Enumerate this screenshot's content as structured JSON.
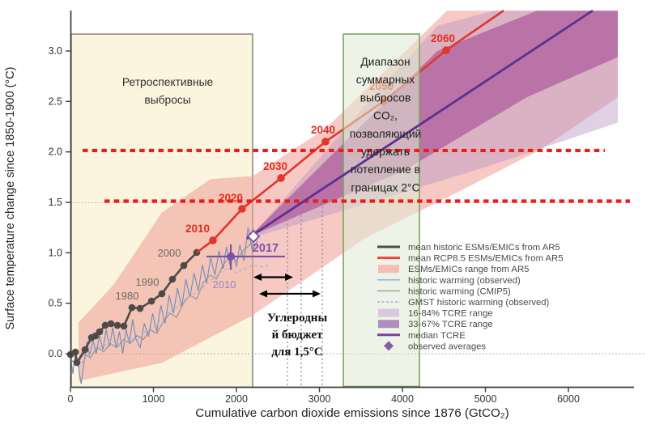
{
  "chart_data": {
    "type": "line",
    "title": "",
    "xlabel": "Cumulative carbon dioxide emissions since 1876 (GtCO₂)",
    "ylabel": "Surface temperature change since 1850-1900 (°C)",
    "xlim": [
      0,
      6790
    ],
    "ylim": [
      -0.33,
      3.4
    ],
    "x_ticks": [
      0,
      1000,
      2000,
      3000,
      4000,
      5000,
      6000
    ],
    "y_ticks": [
      "0.0",
      "0.5",
      "1.0",
      "1.5",
      "2.0",
      "2.5",
      "3.0"
    ],
    "grid": "horizontal-dotted",
    "legend_position": "lower-right",
    "colors": {
      "red_line": "#E2352B",
      "red_dotted": "#EE1C16",
      "historic_gray": "#4E4A48",
      "observed_blue": "#6C8EBF",
      "cmip5_gray": "#8F8F8F",
      "gmst_blue": "#9FB4D8",
      "pink_band": "#EF9D93",
      "tcre_16_84": "#B897C6",
      "tcre_33_67": "#A03F8F",
      "median_purple": "#5C2F92",
      "purple_marker": "#7B52A3",
      "beige_fill": "#FBF4DF",
      "beige_border": "#6B665A",
      "green_fill": "#DFEBD3",
      "green_border": "#7CA45C",
      "axis": "#3C3C3C"
    },
    "bands": [
      {
        "name": "ESMs/EMICs range from AR5",
        "color": "#EF9D93",
        "opacity": 0.55,
        "points": [
          [
            98,
            0.31
          ],
          [
            517,
            0.68
          ],
          [
            1102,
            1.4
          ],
          [
            1688,
            1.73
          ],
          [
            2195,
            1.76
          ],
          [
            3073,
            2.23
          ],
          [
            3736,
            2.76
          ],
          [
            4537,
            3.4
          ],
          [
            6595,
            3.4
          ],
          [
            6595,
            2.54
          ],
          [
            5658,
            2.02
          ],
          [
            4712,
            1.62
          ],
          [
            3541,
            1.14
          ],
          [
            2195,
            0.38
          ],
          [
            1102,
            -0.09
          ],
          [
            98,
            -0.27
          ]
        ]
      },
      {
        "name": "16-84% TCRE range",
        "color": "#B897C6",
        "opacity": 0.45,
        "points": [
          [
            2156,
            1.14
          ],
          [
            3541,
            2.45
          ],
          [
            4420,
            3.25
          ],
          [
            5102,
            3.4
          ],
          [
            6595,
            3.4
          ],
          [
            6595,
            2.29
          ],
          [
            5005,
            1.85
          ],
          [
            3541,
            1.48
          ]
        ]
      },
      {
        "name": "33-67% TCRE range",
        "color": "#A03F8F",
        "opacity": 0.55,
        "points": [
          [
            2156,
            1.16
          ],
          [
            3541,
            2.29
          ],
          [
            4420,
            3.0
          ],
          [
            5620,
            3.4
          ],
          [
            6595,
            3.4
          ],
          [
            6595,
            2.94
          ],
          [
            5493,
            2.54
          ],
          [
            4029,
            1.82
          ]
        ]
      }
    ],
    "series": [
      {
        "name": "historic warming (observed)",
        "style": "thin",
        "color": "#6C8EBF",
        "width": 1.1,
        "points": [
          [
            0,
            -0.02
          ],
          [
            30,
            -0.2
          ],
          [
            60,
            0.04
          ],
          [
            90,
            -0.1
          ],
          [
            130,
            -0.3
          ],
          [
            170,
            -0.05
          ],
          [
            200,
            0.12
          ],
          [
            230,
            -0.02
          ],
          [
            270,
            0.14
          ],
          [
            310,
            0.0
          ],
          [
            350,
            0.18
          ],
          [
            390,
            0.04
          ],
          [
            430,
            0.24
          ],
          [
            470,
            0.07
          ],
          [
            510,
            0.26
          ],
          [
            550,
            0.06
          ],
          [
            590,
            0.22
          ],
          [
            630,
            0.0
          ],
          [
            670,
            0.24
          ],
          [
            710,
            0.11
          ],
          [
            750,
            0.34
          ],
          [
            790,
            0.14
          ],
          [
            840,
            0.06
          ],
          [
            890,
            0.3
          ],
          [
            940,
            0.17
          ],
          [
            990,
            0.4
          ],
          [
            1040,
            0.22
          ],
          [
            1090,
            0.48
          ],
          [
            1140,
            0.3
          ],
          [
            1190,
            0.58
          ],
          [
            1240,
            0.4
          ],
          [
            1290,
            0.65
          ],
          [
            1340,
            0.46
          ],
          [
            1390,
            0.74
          ],
          [
            1440,
            0.56
          ],
          [
            1490,
            0.8
          ],
          [
            1540,
            0.62
          ],
          [
            1590,
            0.88
          ],
          [
            1640,
            0.7
          ],
          [
            1690,
            0.95
          ],
          [
            1740,
            0.78
          ],
          [
            1790,
            1.02
          ],
          [
            1840,
            0.84
          ],
          [
            1880,
            1.06
          ],
          [
            1920,
            0.88
          ],
          [
            1960,
            1.0
          ],
          [
            2000,
            0.86
          ],
          [
            2040,
            1.08
          ],
          [
            2090,
            0.92
          ],
          [
            2140,
            1.25
          ],
          [
            2190,
            1.02
          ],
          [
            2254,
            1.12
          ]
        ]
      },
      {
        "name": "historic warming (CMIP5)",
        "style": "thin",
        "color": "#8F8F8F",
        "width": 1.1,
        "points": [
          [
            0,
            -0.06
          ],
          [
            80,
            -0.1
          ],
          [
            160,
            0.0
          ],
          [
            240,
            -0.04
          ],
          [
            320,
            0.06
          ],
          [
            400,
            0.02
          ],
          [
            480,
            0.1
          ],
          [
            560,
            0.06
          ],
          [
            640,
            0.14
          ],
          [
            720,
            0.1
          ],
          [
            800,
            0.18
          ],
          [
            880,
            0.14
          ],
          [
            960,
            0.24
          ],
          [
            1040,
            0.2
          ],
          [
            1120,
            0.32
          ],
          [
            1200,
            0.4
          ],
          [
            1280,
            0.36
          ],
          [
            1360,
            0.5
          ],
          [
            1440,
            0.58
          ],
          [
            1520,
            0.54
          ],
          [
            1600,
            0.7
          ],
          [
            1680,
            0.78
          ],
          [
            1760,
            0.74
          ],
          [
            1840,
            0.88
          ],
          [
            1920,
            0.96
          ],
          [
            2000,
            0.92
          ],
          [
            2080,
            1.02
          ],
          [
            2160,
            1.08
          ],
          [
            2254,
            1.14
          ]
        ]
      },
      {
        "name": "GMST historic warming (observed)",
        "style": "dashed",
        "color": "#9FB4D8",
        "width": 1.1,
        "points": [
          [
            0,
            -0.06
          ],
          [
            100,
            -0.14
          ],
          [
            200,
            -0.02
          ],
          [
            300,
            0.04
          ],
          [
            400,
            0.08
          ],
          [
            500,
            0.13
          ],
          [
            600,
            0.09
          ],
          [
            700,
            0.16
          ],
          [
            800,
            0.12
          ],
          [
            900,
            0.22
          ],
          [
            1000,
            0.27
          ],
          [
            1100,
            0.34
          ],
          [
            1200,
            0.42
          ],
          [
            1300,
            0.47
          ],
          [
            1400,
            0.55
          ],
          [
            1500,
            0.6
          ],
          [
            1600,
            0.66
          ],
          [
            1700,
            0.73
          ],
          [
            1800,
            0.8
          ],
          [
            1900,
            0.85
          ],
          [
            2000,
            0.8
          ],
          [
            2100,
            0.84
          ],
          [
            2200,
            0.88
          ],
          [
            2300,
            0.86
          ],
          [
            2400,
            0.88
          ]
        ]
      },
      {
        "name": "mean historic ESMs/EMICs from AR5",
        "style": "dotted-line",
        "color": "#4E4A48",
        "width": 2.6,
        "dot_r": 4.3,
        "points": [
          [
            0,
            -0.008
          ],
          [
            59,
            0.016
          ],
          [
            78,
            -0.088
          ],
          [
            176,
            0.04
          ],
          [
            254,
            0.16
          ],
          [
            302,
            0.176
          ],
          [
            351,
            0.217
          ],
          [
            420,
            0.281
          ],
          [
            488,
            0.297
          ],
          [
            566,
            0.281
          ],
          [
            644,
            0.273
          ],
          [
            741,
            0.457
          ],
          [
            839,
            0.449
          ],
          [
            976,
            0.521
          ],
          [
            1102,
            0.594
          ],
          [
            1229,
            0.738
          ],
          [
            1366,
            0.874
          ],
          [
            1522,
            1.003
          ]
        ]
      },
      {
        "name": "mean RCP8.5 ESMs/EMICs from AR5",
        "style": "dotted-line",
        "color": "#E2352B",
        "width": 2.6,
        "dot_r": 4.8,
        "dots_from": 1,
        "points": [
          [
            1522,
            1.003
          ],
          [
            1717,
            1.123
          ],
          [
            2068,
            1.436
          ],
          [
            2537,
            1.741
          ],
          [
            3073,
            2.102
          ],
          [
            3776,
            2.503
          ],
          [
            4527,
            3.008
          ],
          [
            5220,
            3.401
          ]
        ]
      },
      {
        "name": "median TCRE",
        "style": "plain",
        "color": "#5C2F92",
        "width": 2.8,
        "points": [
          [
            2127,
            1.139
          ],
          [
            6293,
            3.401
          ]
        ]
      }
    ],
    "observed_averages": {
      "filled_diamond": {
        "x": 1932,
        "y": 0.963,
        "err_y": [
          0.834,
          1.083
        ],
        "err_x": [
          1639,
          2585
        ]
      },
      "open_diamond": {
        "x": 2205,
        "y": 1.163
      }
    },
    "thresholds": [
      {
        "name": "red-dotted-2C",
        "y": 2.014,
        "x0": 146,
        "x1": 6439,
        "color": "#EE1C16",
        "width": 4.2,
        "dash": "6.5 5.2"
      },
      {
        "name": "red-dotted-1.5C",
        "y": 1.512,
        "x0": 410,
        "x1": 6741,
        "color": "#EE1C16",
        "width": 4.2,
        "dash": "6.5 5.2"
      },
      {
        "name": "gray-dotted-0C",
        "y": 0.0,
        "x0": 10,
        "x1": 6930,
        "color": "#9A9A9A",
        "width": 1,
        "dash": "1.6 2.6"
      },
      {
        "name": "gray-dotted-1.5C",
        "y": 1.496,
        "x0": 10,
        "x1": 6760,
        "color": "#AFAFAF",
        "width": 1,
        "dash": "1.6 2.6"
      }
    ],
    "vlines": [
      {
        "x": 2615,
        "y0": -0.329,
        "y1": 1.54
      },
      {
        "x": 2780,
        "y0": -0.329,
        "y1": 1.54
      },
      {
        "x": 3034,
        "y0": -0.329,
        "y1": 1.54
      }
    ],
    "regions": [
      {
        "name": "retrospective-emissions",
        "x0": 10,
        "x1": 2195,
        "y0": -0.333,
        "y1": 3.168,
        "fill": "#FBF4DF",
        "opacity": 1,
        "border": "#6B665A",
        "border_w": 1.2,
        "layer": "under"
      },
      {
        "name": "co2-range-2C",
        "x0": 3288,
        "x1": 4205,
        "y0": -0.325,
        "y1": 3.168,
        "fill": "#DFEBD3",
        "opacity": 0.55,
        "border": "#7CA45C",
        "border_w": 1.6,
        "layer": "over"
      }
    ],
    "arrows": [
      {
        "x0": 2205,
        "x1": 2683,
        "y": 0.758
      },
      {
        "x0": 2273,
        "x1": 3015,
        "y": 0.594
      }
    ],
    "year_labels": [
      {
        "text": "2010",
        "x": 1532,
        "y": 1.235,
        "color": "#E0301E",
        "size": 13.5,
        "weight": "bold"
      },
      {
        "text": "2020",
        "x": 1932,
        "y": 1.54,
        "color": "#E0301E",
        "size": 13.5,
        "weight": "bold"
      },
      {
        "text": "2030",
        "x": 2468,
        "y": 1.853,
        "color": "#E0301E",
        "size": 13.5,
        "weight": "bold"
      },
      {
        "text": "2040",
        "x": 3044,
        "y": 2.214,
        "color": "#E0301E",
        "size": 13.5,
        "weight": "bold"
      },
      {
        "text": "2050",
        "x": 3746,
        "y": 2.647,
        "color": "#E0301E",
        "size": 13.5,
        "weight": "bold"
      },
      {
        "text": "2060",
        "x": 4488,
        "y": 3.12,
        "color": "#E0301E",
        "size": 13.5,
        "weight": "bold"
      },
      {
        "text": "1980",
        "x": 683,
        "y": 0.57,
        "color": "#6E6A66",
        "size": 13,
        "weight": "normal"
      },
      {
        "text": "1990",
        "x": 927,
        "y": 0.706,
        "color": "#6E6A66",
        "size": 13,
        "weight": "normal"
      },
      {
        "text": "2000",
        "x": 1190,
        "y": 0.995,
        "color": "#6E6A66",
        "size": 13,
        "weight": "normal"
      },
      {
        "text": "2017",
        "x": 2351,
        "y": 1.043,
        "color": "#7B52A3",
        "size": 14.5,
        "weight": "bold"
      },
      {
        "text": "2010",
        "x": 1854,
        "y": 0.682,
        "color": "#9B82C0",
        "size": 13,
        "weight": "normal"
      }
    ],
    "annotations": [
      {
        "name": "retrospective-emissions-label",
        "lines": [
          "Ретроспективные",
          "выбросы"
        ],
        "x": 1171,
        "y": 2.687,
        "size": 13.8,
        "color": "#2F2F2F",
        "family": "sans",
        "weight": "normal",
        "lh": 22
      },
      {
        "name": "co2-range-label",
        "lines": [
          "Диапазон",
          "суммарных",
          "выбросов",
          "CO₂,",
          "позволяющий",
          "удержать",
          "потепление в",
          "границах 2°C"
        ],
        "x": 3795,
        "y": 2.888,
        "size": 13.8,
        "color": "#1E1E1E",
        "family": "sans",
        "weight": "normal",
        "lh": 22.2
      },
      {
        "name": "carbon-budget-label",
        "lines": [
          "Углеродны",
          "й бюджет",
          "для 1,5°C"
        ],
        "x": 2732,
        "y": 0.353,
        "size": 15,
        "color": "#111111",
        "family": "serif",
        "weight": "bold",
        "lh": 21
      }
    ],
    "legend": [
      {
        "swatch": "line",
        "color": "#4E4A48",
        "w": 3,
        "label": "mean historic ESMs/EMICs from AR5"
      },
      {
        "swatch": "line",
        "color": "#E8473C",
        "w": 3,
        "label": "mean RCP8.5 ESMs/EMICs from AR5"
      },
      {
        "swatch": "rect",
        "color": "#F5BDB5",
        "label": "ESMs/EMICs range from AR5"
      },
      {
        "swatch": "line",
        "color": "#8FA8CC",
        "w": 1.4,
        "label": "historic warming (observed)"
      },
      {
        "swatch": "line",
        "color": "#9A9A9A",
        "w": 1.4,
        "label": "historic warming (CMIP5)"
      },
      {
        "swatch": "dashed",
        "color": "#9FB4D8",
        "w": 1.4,
        "label": "GMST historic warming (observed)"
      },
      {
        "swatch": "rect",
        "color": "#D9C7DC",
        "label": "16-84% TCRE range"
      },
      {
        "swatch": "rect",
        "color": "#B18CC0",
        "label": "33-67% TCRE range"
      },
      {
        "swatch": "line",
        "color": "#7F3F98",
        "w": 3,
        "label": "median TCRE"
      },
      {
        "swatch": "diamond",
        "color": "#8A5BA5",
        "label": "observed averages"
      }
    ]
  }
}
